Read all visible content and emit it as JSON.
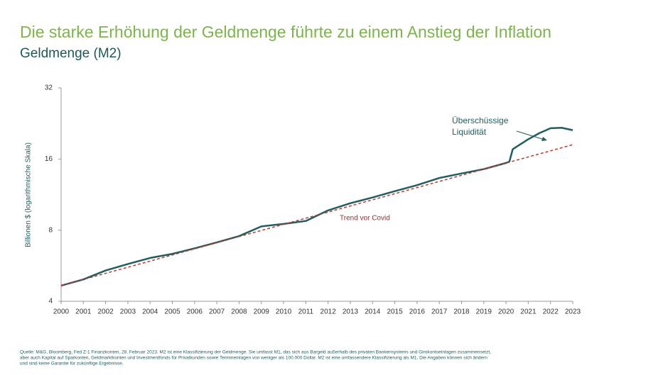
{
  "chart_data": {
    "type": "line",
    "title": "Die starke Erhöhung der Geldmenge führte zu einem Anstieg der Inflation",
    "subtitle": "Geldmenge (M2)",
    "y_label": "Billionen $ (logarithmische Skala)",
    "log_scale": true,
    "xlim": [
      2000,
      2023
    ],
    "xticks": [
      2000,
      2001,
      2002,
      2003,
      2004,
      2005,
      2006,
      2007,
      2008,
      2009,
      2010,
      2011,
      2012,
      2013,
      2014,
      2015,
      2016,
      2017,
      2018,
      2019,
      2020,
      2021,
      2022,
      2023
    ],
    "ylim": [
      4,
      32
    ],
    "yticks": [
      4,
      8,
      16,
      32
    ],
    "series": [
      {
        "color": "#1f5f5f",
        "dashed": false,
        "x": [
          2000,
          2001,
          2002,
          2003,
          2004,
          2005,
          2006,
          2007,
          2008,
          2009,
          2010,
          2011,
          2012,
          2013,
          2014,
          2015,
          2016,
          2017,
          2018,
          2019,
          2020,
          2020.15,
          2020.3,
          2020.5,
          2021,
          2021.5,
          2022,
          2022.5,
          2023
        ],
        "values": [
          4.66,
          4.95,
          5.4,
          5.75,
          6.1,
          6.35,
          6.7,
          7.1,
          7.55,
          8.3,
          8.5,
          8.75,
          9.7,
          10.4,
          11.0,
          11.7,
          12.4,
          13.3,
          13.9,
          14.5,
          15.4,
          15.6,
          17.6,
          18.1,
          19.4,
          20.6,
          21.6,
          21.7,
          21.2
        ]
      },
      {
        "color": "#c0392b",
        "dashed": true,
        "x": [
          2000,
          2023
        ],
        "values": [
          4.66,
          18.4
        ]
      }
    ],
    "annotations": [
      {
        "lines": [
          "Trend vor Covid"
        ],
        "color": "#a52a2a"
      },
      {
        "lines": [
          "Überschüssige",
          "Liquidität"
        ],
        "color": "#1f5f5f"
      }
    ],
    "footnote": [
      "Quelle: M&G, Bloomberg, Fed Z-1 Finanzkonten, 28. Februar 2023. M2 ist eine Klassifizierung der Geldmenge. Sie umfasst M1, das sich aus Bargeld außerhalb des privaten Bankensystems und Girokontoeinlagen zusammensetzt,",
      "aber auch Kapital auf Sparkonten, Geldmarktkonten und Investmentfonds für Privatkunden sowie Termineinlagen von weniger als 100.000 Dollar. M2 ist eine umfassendere Klassifizierung als M1. Die Angaben können sich ändern",
      "und sind keine Garantie für zukünftige Ergebnisse."
    ]
  }
}
